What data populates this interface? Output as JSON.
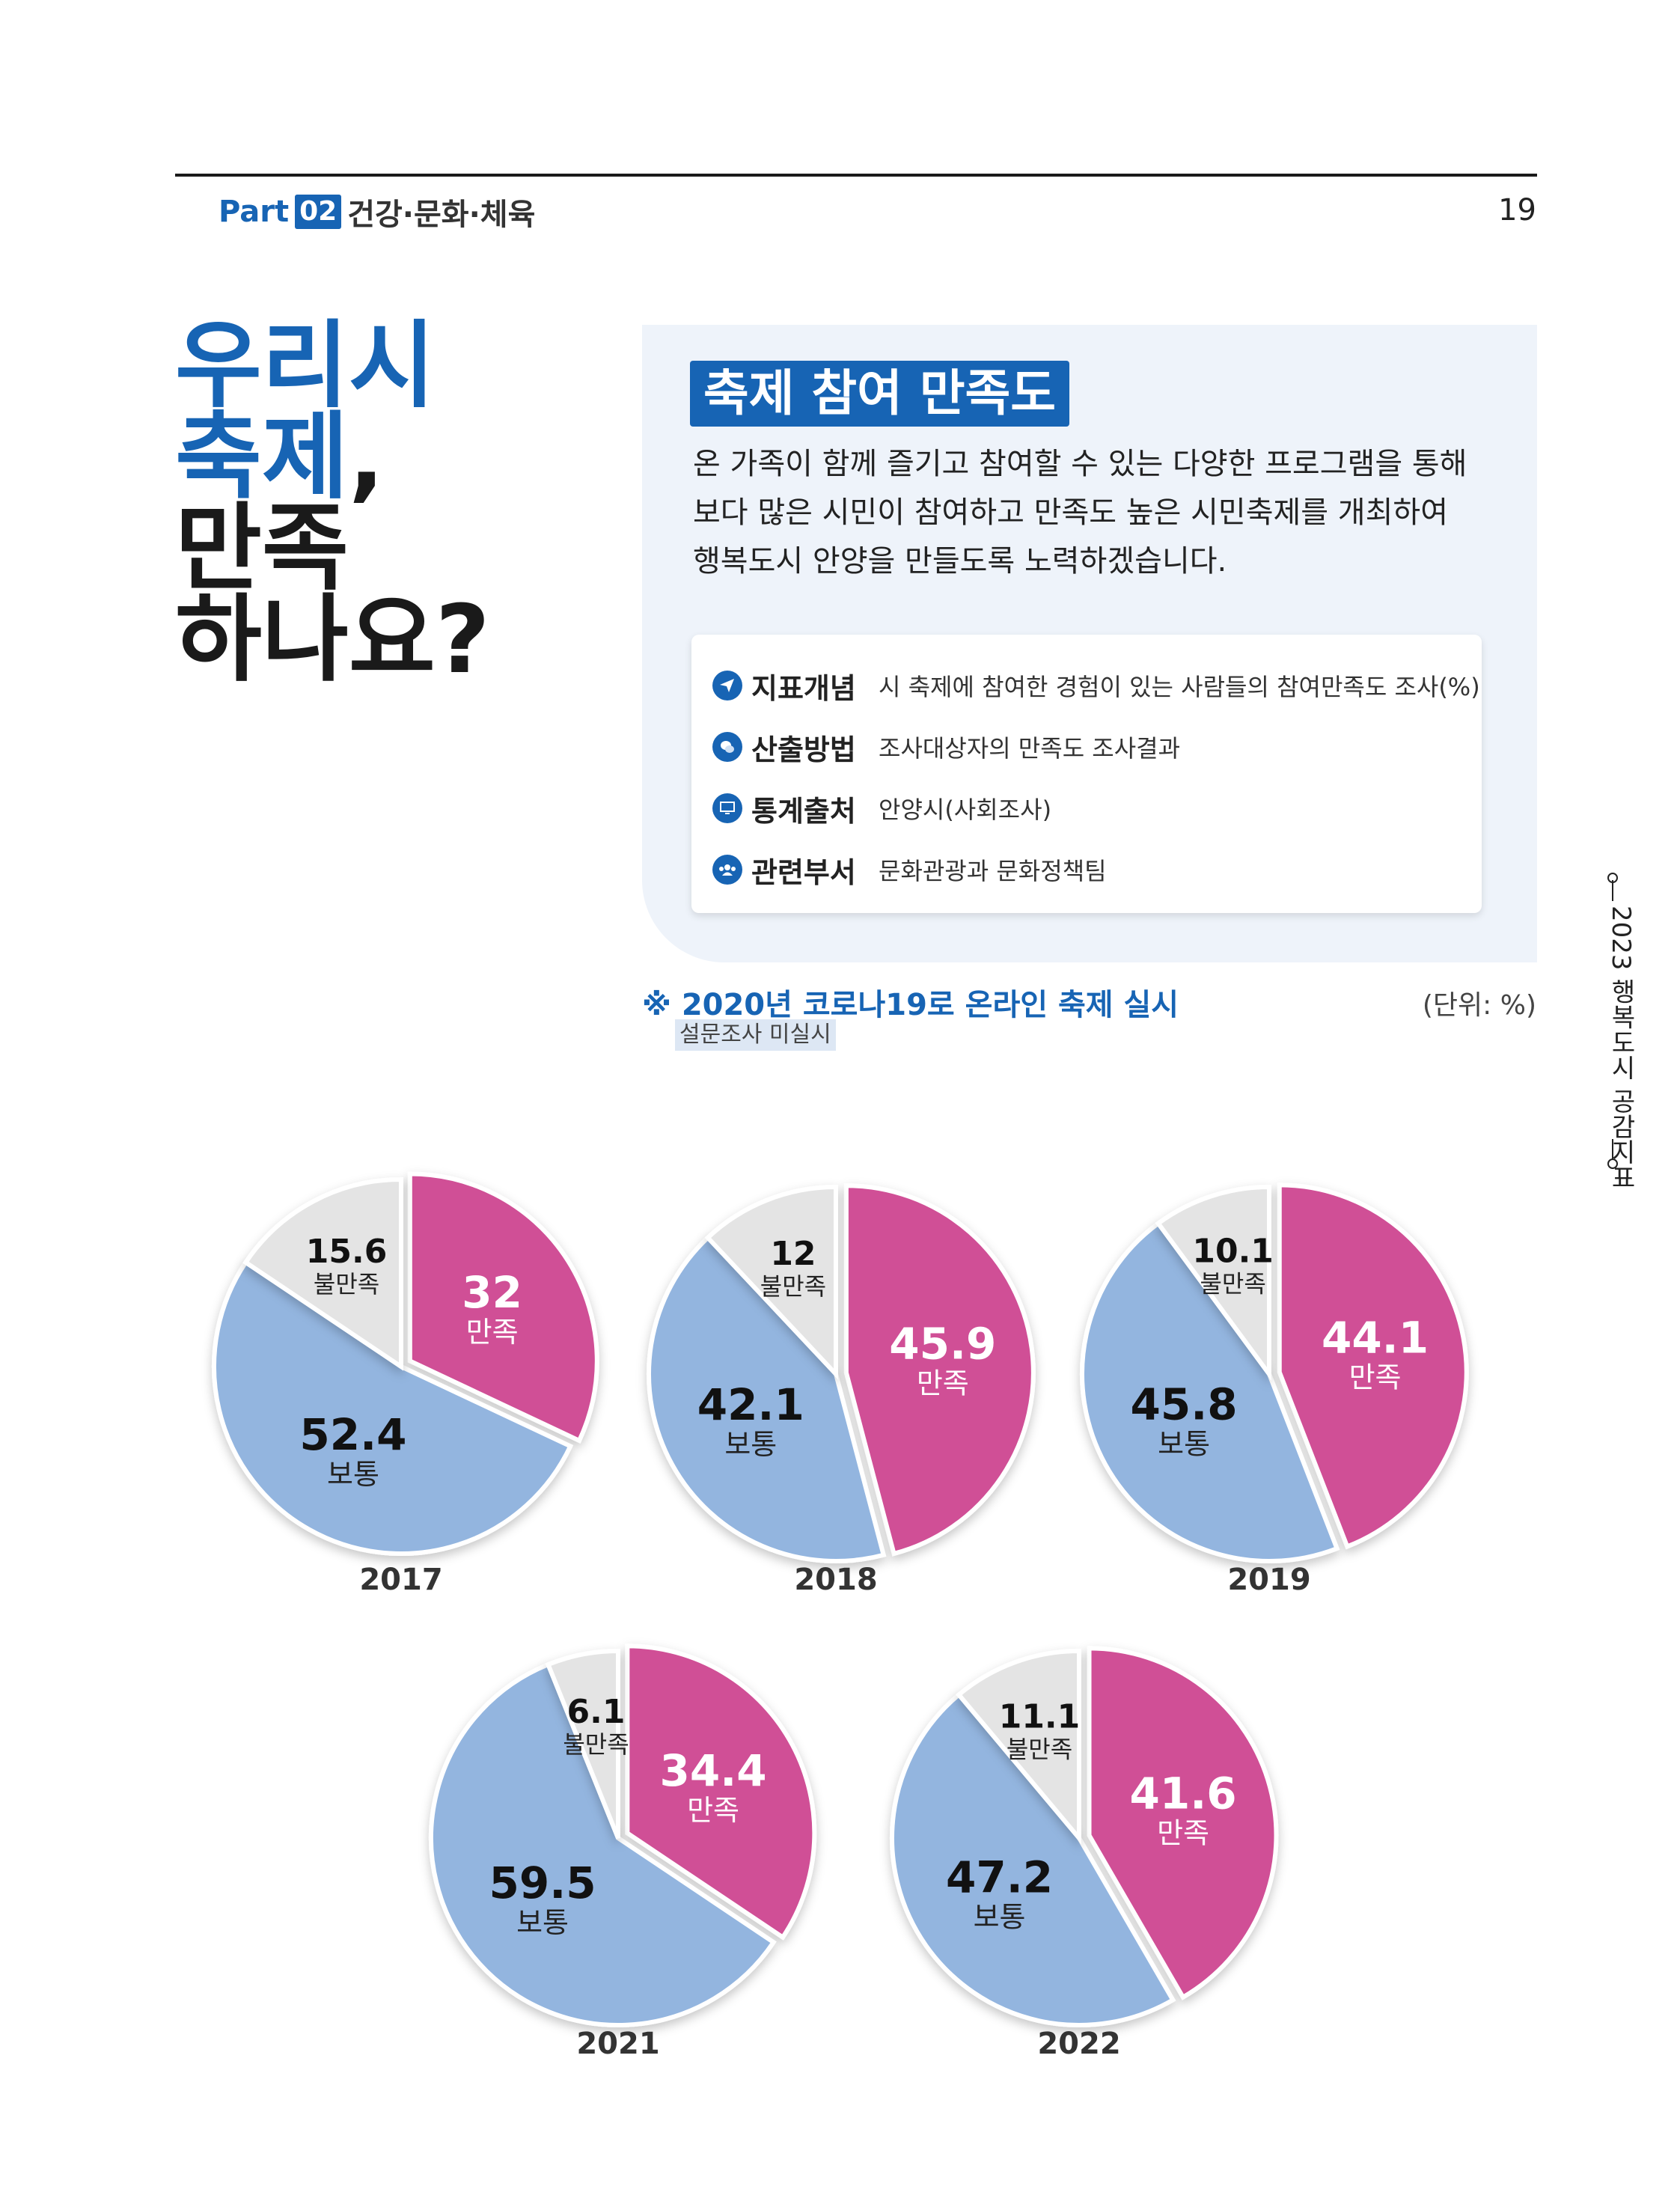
{
  "header": {
    "part_word": "Part",
    "part_number": "02",
    "section_title": "건강·문화·체육",
    "page_number": "19"
  },
  "title": {
    "line1": "우리시",
    "line2_blue": "축제",
    "line2_comma": ",",
    "line3": "만족",
    "line4": "하나요?"
  },
  "indicator": {
    "badge": "축제 참여 만족도",
    "intro_lines": [
      "온 가족이 함께 즐기고 참여할 수 있는 다양한 프로그램을 통해",
      "보다 많은 시민이 참여하고 만족도 높은 시민축제를 개최하여",
      "행복도시 안양을 만들도록 노력하겠습니다."
    ],
    "rows": [
      {
        "icon": "send-icon",
        "label": "지표개념",
        "value": "시 축제에 참여한 경험이 있는 사람들의 참여만족도 조사(%)"
      },
      {
        "icon": "chat-icon",
        "label": "산출방법",
        "value": "조사대상자의 만족도 조사결과"
      },
      {
        "icon": "monitor-icon",
        "label": "통계출처",
        "value": "안양시(사회조사)"
      },
      {
        "icon": "people-icon",
        "label": "관련부서",
        "value": "문화관광과 문화정책팀"
      }
    ]
  },
  "note": {
    "main": "※ 2020년 코로나19로 온라인 축제 실시",
    "sub": "설문조사 미실시",
    "unit": "(단위: %)"
  },
  "side_label": "2023 행복도시 공감지표",
  "colors": {
    "brand_blue": "#1764b4",
    "satisfied": "#d05096",
    "neutral": "#93b5df",
    "unsatisfied": "#e4e4e4"
  },
  "chart_data": [
    {
      "type": "pie",
      "title": "2017",
      "labels": [
        "만족",
        "보통",
        "불만족"
      ],
      "values": [
        32,
        52.4,
        15.6
      ],
      "display": [
        "32",
        "52.4",
        "15.6"
      ]
    },
    {
      "type": "pie",
      "title": "2018",
      "labels": [
        "만족",
        "보통",
        "불만족"
      ],
      "values": [
        45.9,
        42.1,
        12
      ],
      "display": [
        "45.9",
        "42.1",
        "12"
      ]
    },
    {
      "type": "pie",
      "title": "2019",
      "labels": [
        "만족",
        "보통",
        "불만족"
      ],
      "values": [
        44.1,
        45.8,
        10.1
      ],
      "display": [
        "44.1",
        "45.8",
        "10.1"
      ]
    },
    {
      "type": "pie",
      "title": "2021",
      "labels": [
        "만족",
        "보통",
        "불만족"
      ],
      "values": [
        34.4,
        59.5,
        6.1
      ],
      "display": [
        "34.4",
        "59.5",
        "6.1"
      ]
    },
    {
      "type": "pie",
      "title": "2022",
      "labels": [
        "만족",
        "보통",
        "불만족"
      ],
      "values": [
        41.6,
        47.2,
        11.1
      ],
      "display": [
        "41.6",
        "47.2",
        "11.1"
      ]
    }
  ]
}
